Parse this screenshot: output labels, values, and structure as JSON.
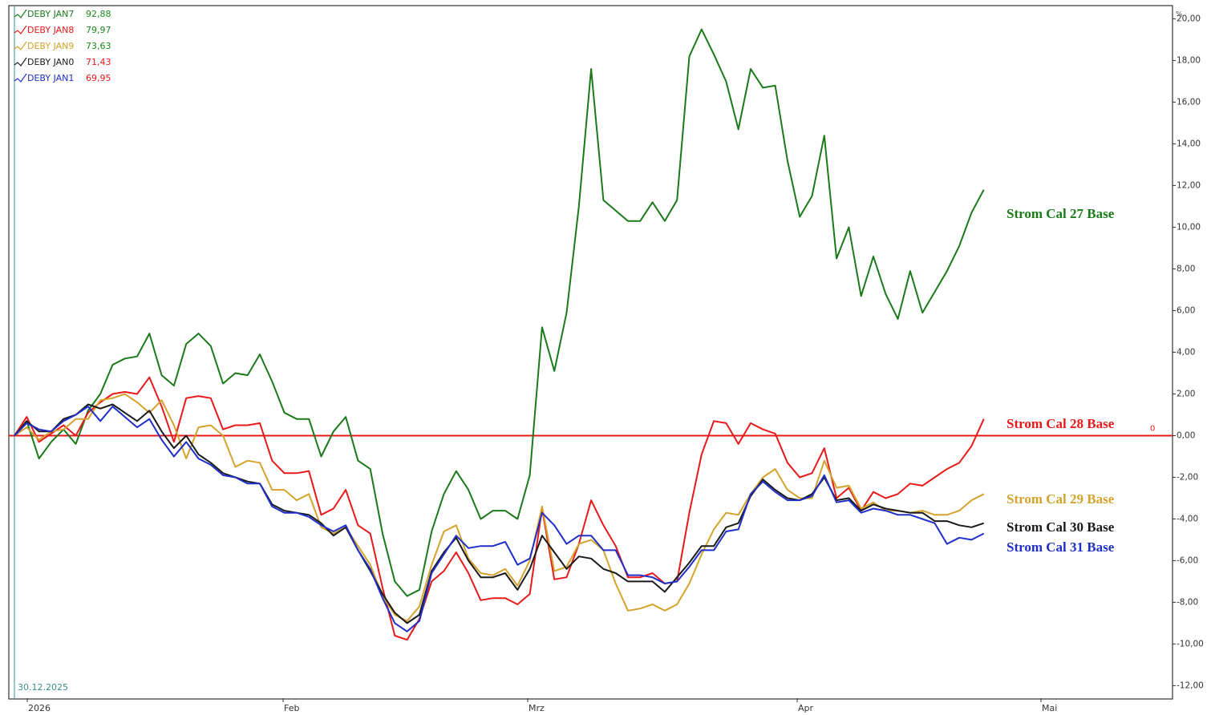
{
  "chart_data": {
    "type": "line",
    "y_unit": "%",
    "start_label": "30.12.2025",
    "x_labels": [
      "2026",
      "Feb",
      "Mrz",
      "Apr",
      "Mai"
    ],
    "ylim": [
      -12.6,
      20.6
    ],
    "yticks": [
      {
        "value": 20,
        "label": "20,00"
      },
      {
        "value": 18,
        "label": "18,00"
      },
      {
        "value": 16,
        "label": "16,00"
      },
      {
        "value": 14,
        "label": "14,00"
      },
      {
        "value": 12,
        "label": "12,00"
      },
      {
        "value": 10,
        "label": "10,00"
      },
      {
        "value": 8,
        "label": "8,00"
      },
      {
        "value": 6,
        "label": "6,00"
      },
      {
        "value": 4,
        "label": "4,00"
      },
      {
        "value": 2,
        "label": "2,00"
      },
      {
        "value": 0,
        "label": "0,00"
      },
      {
        "value": -2,
        "label": "-2,00"
      },
      {
        "value": -4,
        "label": "-4,00"
      },
      {
        "value": -6,
        "label": "-6,00"
      },
      {
        "value": -8,
        "label": "-8,00"
      },
      {
        "value": -10,
        "label": "-10,00"
      },
      {
        "value": -12,
        "label": "-12,00"
      }
    ],
    "reference_line": {
      "value": 0,
      "color": "#e8191a"
    },
    "series": [
      {
        "name": "DEBY JAN7",
        "legend_value": "92,88",
        "legend_value_color": "#1a8a1a",
        "label": "Strom Cal 27 Base",
        "color": "#1a7a1a",
        "values": [
          0,
          0.7,
          -1.1,
          -0.3,
          0.3,
          -0.4,
          1.2,
          2.0,
          3.4,
          3.7,
          3.8,
          4.9,
          2.9,
          2.4,
          4.4,
          4.9,
          4.3,
          2.5,
          3.0,
          2.9,
          3.9,
          2.6,
          1.1,
          0.8,
          0.8,
          -1.0,
          0.2,
          0.9,
          -1.2,
          -1.6,
          -4.7,
          -7.0,
          -7.7,
          -7.4,
          -4.6,
          -2.8,
          -1.7,
          -2.6,
          -4.0,
          -3.6,
          -3.6,
          -4.0,
          -1.9,
          5.2,
          3.1,
          5.9,
          11.0,
          17.6,
          11.3,
          10.8,
          10.3,
          10.3,
          11.2,
          10.3,
          11.3,
          18.2,
          19.5,
          18.3,
          17.0,
          14.7,
          17.6,
          16.7,
          16.8,
          13.2,
          10.5,
          11.5,
          14.4,
          8.5,
          10.0,
          6.7,
          8.6,
          6.8,
          5.6,
          7.9,
          5.9,
          6.9,
          7.9,
          9.1,
          10.7,
          11.8
        ]
      },
      {
        "name": "DEBY JAN8",
        "legend_value": "79,97",
        "legend_value_color": "#1a8a1a",
        "label": "Strom Cal 28 Base",
        "color": "#e8191a",
        "values": [
          0,
          0.9,
          -0.3,
          0.1,
          0.5,
          0,
          1.1,
          1.6,
          2.0,
          2.1,
          2.0,
          2.8,
          1.4,
          -0.3,
          1.8,
          1.9,
          1.8,
          0.3,
          0.5,
          0.5,
          0.6,
          -1.2,
          -1.8,
          -1.8,
          -1.7,
          -3.8,
          -3.5,
          -2.6,
          -4.3,
          -4.7,
          -7.3,
          -9.6,
          -9.8,
          -8.8,
          -7.0,
          -6.5,
          -5.6,
          -6.6,
          -7.9,
          -7.8,
          -7.8,
          -8.1,
          -7.6,
          -3.5,
          -6.9,
          -6.8,
          -5.2,
          -3.1,
          -4.3,
          -5.3,
          -6.8,
          -6.8,
          -6.6,
          -7.1,
          -7.0,
          -3.7,
          -0.9,
          0.7,
          0.6,
          -0.4,
          0.6,
          0.3,
          0.1,
          -1.3,
          -2.0,
          -1.8,
          -0.6,
          -3.0,
          -2.5,
          -3.6,
          -2.7,
          -3.0,
          -2.8,
          -2.3,
          -2.4,
          -2.0,
          -1.6,
          -1.3,
          -0.5,
          0.8
        ]
      },
      {
        "name": "DEBY JAN9",
        "legend_value": "73,63",
        "legend_value_color": "#1a8a1a",
        "label": "Strom Cal 29 Base",
        "color": "#d4a32c",
        "values": [
          0,
          0.4,
          -0.2,
          0.2,
          0.3,
          0.8,
          0.8,
          1.7,
          1.8,
          2.0,
          1.6,
          1.1,
          1.7,
          0.5,
          -1.1,
          0.4,
          0.5,
          0,
          -1.5,
          -1.2,
          -1.3,
          -2.6,
          -2.6,
          -3.1,
          -2.8,
          -4.4,
          -4.7,
          -4.4,
          -5.3,
          -6.2,
          -7.7,
          -8.6,
          -8.9,
          -8.2,
          -6.2,
          -4.6,
          -4.3,
          -5.9,
          -6.6,
          -6.7,
          -6.4,
          -7.2,
          -6.0,
          -3.4,
          -6.5,
          -6.3,
          -5.2,
          -5.0,
          -5.5,
          -7.1,
          -8.4,
          -8.3,
          -8.1,
          -8.4,
          -8.1,
          -7.1,
          -5.7,
          -4.5,
          -3.7,
          -3.8,
          -2.8,
          -2.0,
          -1.6,
          -2.6,
          -3.0,
          -3.0,
          -1.2,
          -2.5,
          -2.4,
          -3.5,
          -3.2,
          -3.6,
          -3.6,
          -3.7,
          -3.6,
          -3.8,
          -3.8,
          -3.6,
          -3.1,
          -2.8
        ]
      },
      {
        "name": "DEBY JAN0",
        "legend_value": "71,43",
        "legend_value_color": "#e8191a",
        "label": "Strom Cal 30 Base",
        "color": "#1a1a1a",
        "values": [
          0,
          0.7,
          0.2,
          0.2,
          0.8,
          1.0,
          1.5,
          1.3,
          1.5,
          1.1,
          0.7,
          1.2,
          0.2,
          -0.6,
          0,
          -0.9,
          -1.3,
          -1.8,
          -2.0,
          -2.2,
          -2.3,
          -3.3,
          -3.6,
          -3.7,
          -3.8,
          -4.2,
          -4.8,
          -4.4,
          -5.5,
          -6.5,
          -7.6,
          -8.5,
          -9.0,
          -8.6,
          -6.5,
          -5.6,
          -4.9,
          -6.0,
          -6.8,
          -6.8,
          -6.6,
          -7.4,
          -6.4,
          -4.8,
          -5.6,
          -6.4,
          -5.8,
          -5.9,
          -6.4,
          -6.6,
          -7.0,
          -7.0,
          -7.0,
          -7.5,
          -6.8,
          -6.1,
          -5.3,
          -5.3,
          -4.4,
          -4.2,
          -2.9,
          -2.1,
          -2.6,
          -3.0,
          -3.1,
          -2.8,
          -2.0,
          -3.1,
          -3.0,
          -3.6,
          -3.3,
          -3.5,
          -3.6,
          -3.7,
          -3.7,
          -4.1,
          -4.1,
          -4.3,
          -4.4,
          -4.2
        ]
      },
      {
        "name": "DEBY JAN1",
        "legend_value": "69,95",
        "legend_value_color": "#e8191a",
        "label": "Strom Cal 31 Base",
        "color": "#1f2fc7",
        "values": [
          0,
          0.6,
          0.3,
          0.2,
          0.7,
          1.0,
          1.4,
          0.7,
          1.4,
          0.9,
          0.4,
          0.8,
          -0.2,
          -1.0,
          -0.3,
          -1.1,
          -1.4,
          -1.9,
          -2.0,
          -2.3,
          -2.3,
          -3.4,
          -3.7,
          -3.7,
          -3.9,
          -4.3,
          -4.6,
          -4.3,
          -5.5,
          -6.4,
          -7.8,
          -9.0,
          -9.4,
          -8.9,
          -6.6,
          -5.7,
          -4.8,
          -5.4,
          -5.3,
          -5.3,
          -5.1,
          -6.2,
          -5.9,
          -3.7,
          -4.3,
          -5.2,
          -4.8,
          -4.8,
          -5.5,
          -5.5,
          -6.7,
          -6.7,
          -6.8,
          -7.1,
          -7.0,
          -6.3,
          -5.5,
          -5.5,
          -4.6,
          -4.5,
          -2.8,
          -2.2,
          -2.7,
          -3.1,
          -3.1,
          -2.9,
          -1.9,
          -3.2,
          -3.1,
          -3.7,
          -3.5,
          -3.6,
          -3.8,
          -3.8,
          -4.0,
          -4.2,
          -5.2,
          -4.9,
          -5.0,
          -4.7
        ]
      }
    ]
  }
}
